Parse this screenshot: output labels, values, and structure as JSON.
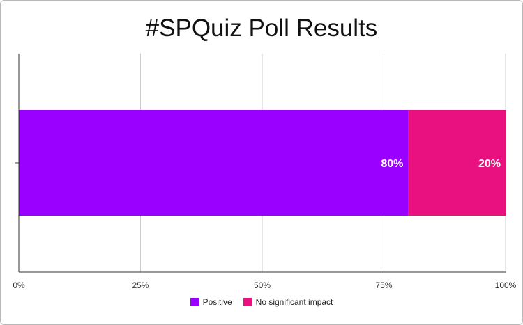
{
  "chart_data": {
    "type": "bar",
    "orientation": "horizontal",
    "stacked": true,
    "title": "#SPQuiz Poll Results",
    "categories": [
      ""
    ],
    "series": [
      {
        "name": "Positive",
        "values": [
          80
        ],
        "label": "80%",
        "color": "#9900ff"
      },
      {
        "name": "No significant impact",
        "values": [
          20
        ],
        "label": "20%",
        "color": "#e8117f"
      }
    ],
    "xlim": [
      0,
      100
    ],
    "x_ticks": [
      0,
      25,
      50,
      75,
      100
    ],
    "x_tick_labels": [
      "0%",
      "25%",
      "50%",
      "75%",
      "100%"
    ],
    "grid": true,
    "legend_position": "bottom"
  }
}
